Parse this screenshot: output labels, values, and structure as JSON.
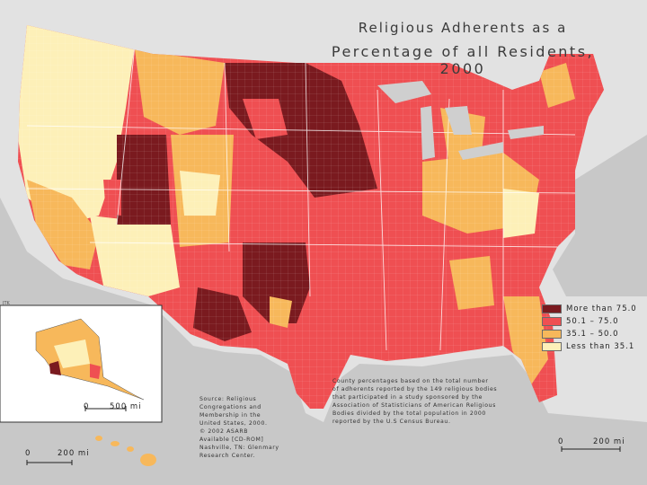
{
  "title_line1": "Religious Adherents as a",
  "title_line2": "Percentage of all Residents, 2000",
  "legend": [
    {
      "label": "More than 75.0",
      "color": "#7a1a1f"
    },
    {
      "label": "50.1 – 75.0",
      "color": "#ef4f52"
    },
    {
      "label": "35.1 – 50.0",
      "color": "#f7b85b"
    },
    {
      "label": "Less than 35.1",
      "color": "#fdf0b8"
    }
  ],
  "source_note": "Source: Religious\nCongregations and\nMembership in the\nUnited States, 2000.\n© 2002 ASARB\nAvailable [CD-ROM]\nNashville, TN: Glenmary\nResearch Center.",
  "description_note": "County percentages based on the total number\nof adherents reported by the 149 religious bodies\nthat participated in a study sponsored by the\nAssociation of Statisticians of American Religious\nBodies divided by the total population in 2000\nreported by the U.S Census Bureau.",
  "alaska_scale": {
    "zero": "0",
    "distance": "500 mi"
  },
  "hawaii_scale": {
    "zero": "0",
    "distance": "200 mi"
  },
  "main_scale": {
    "zero": "0",
    "distance": "200 mi"
  },
  "credit": "JTK",
  "colors": {
    "ocean": "#c8c8c8",
    "canada": "#e2e2e2",
    "lakes": "#cfcfcf",
    "border": "#ffffff"
  }
}
